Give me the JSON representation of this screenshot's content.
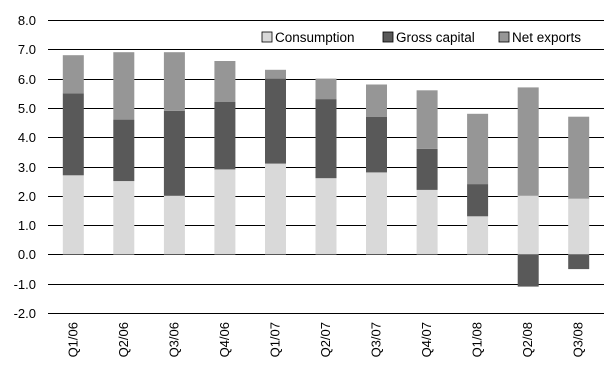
{
  "chart_data": {
    "type": "bar",
    "stacked": true,
    "title": "",
    "xlabel": "",
    "ylabel": "",
    "categories": [
      "Q1/06",
      "Q2/06",
      "Q3/06",
      "Q4/06",
      "Q1/07",
      "Q2/07",
      "Q3/07",
      "Q4/07",
      "Q1/08",
      "Q2/08",
      "Q3/08"
    ],
    "y_ticks": [
      "8.0",
      "7.0",
      "6.0",
      "5.0",
      "4.0",
      "3.0",
      "2.0",
      "1.0",
      "0.0",
      "-1.0",
      "-2.0"
    ],
    "ylim": [
      -2,
      8
    ],
    "grid": true,
    "legend_position": "top-right",
    "series": [
      {
        "name": "Consumption",
        "color": "#d9d9d9",
        "values": [
          2.7,
          2.5,
          2.0,
          2.9,
          3.1,
          2.6,
          2.8,
          2.2,
          1.3,
          2.0,
          1.9
        ]
      },
      {
        "name": "Gross capital",
        "color": "#595959",
        "values": [
          2.8,
          2.1,
          2.9,
          2.3,
          2.9,
          2.7,
          1.9,
          1.4,
          1.1,
          -1.1,
          -0.5
        ]
      },
      {
        "name": "Net exports",
        "color": "#969696",
        "values": [
          1.3,
          2.3,
          2.0,
          1.4,
          0.3,
          0.7,
          1.1,
          2.0,
          2.4,
          3.7,
          2.8
        ]
      }
    ]
  }
}
